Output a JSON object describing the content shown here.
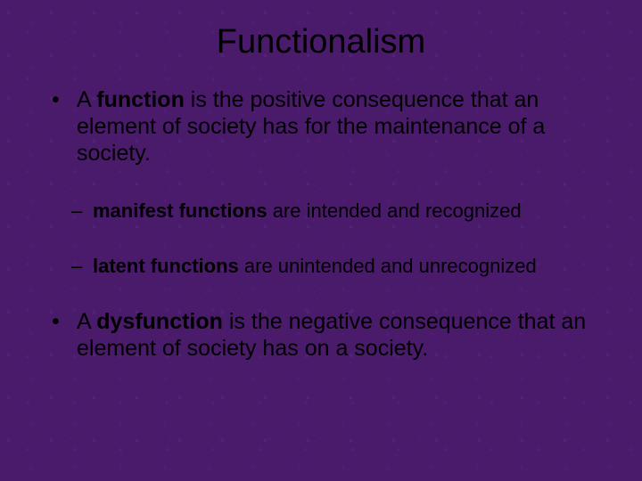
{
  "background_color": "#4a1a6b",
  "text_color": "#000000",
  "font_family": "Arial",
  "title": {
    "text": "Functionalism",
    "fontsize": 38,
    "align": "center"
  },
  "bullets": [
    {
      "prefix": "A ",
      "bold": "function",
      "suffix": " is the positive consequence that an element of society has for the maintenance of a society.",
      "fontsize": 25,
      "sub": [
        {
          "bold": "manifest functions",
          "suffix": " are intended and recognized",
          "fontsize": 22
        },
        {
          "bold": "latent functions",
          "suffix": " are unintended and unrecognized",
          "fontsize": 22
        }
      ]
    },
    {
      "prefix": "A ",
      "bold": "dysfunction",
      "suffix": " is the negative consequence that an element of society has on a society.",
      "fontsize": 25
    }
  ]
}
